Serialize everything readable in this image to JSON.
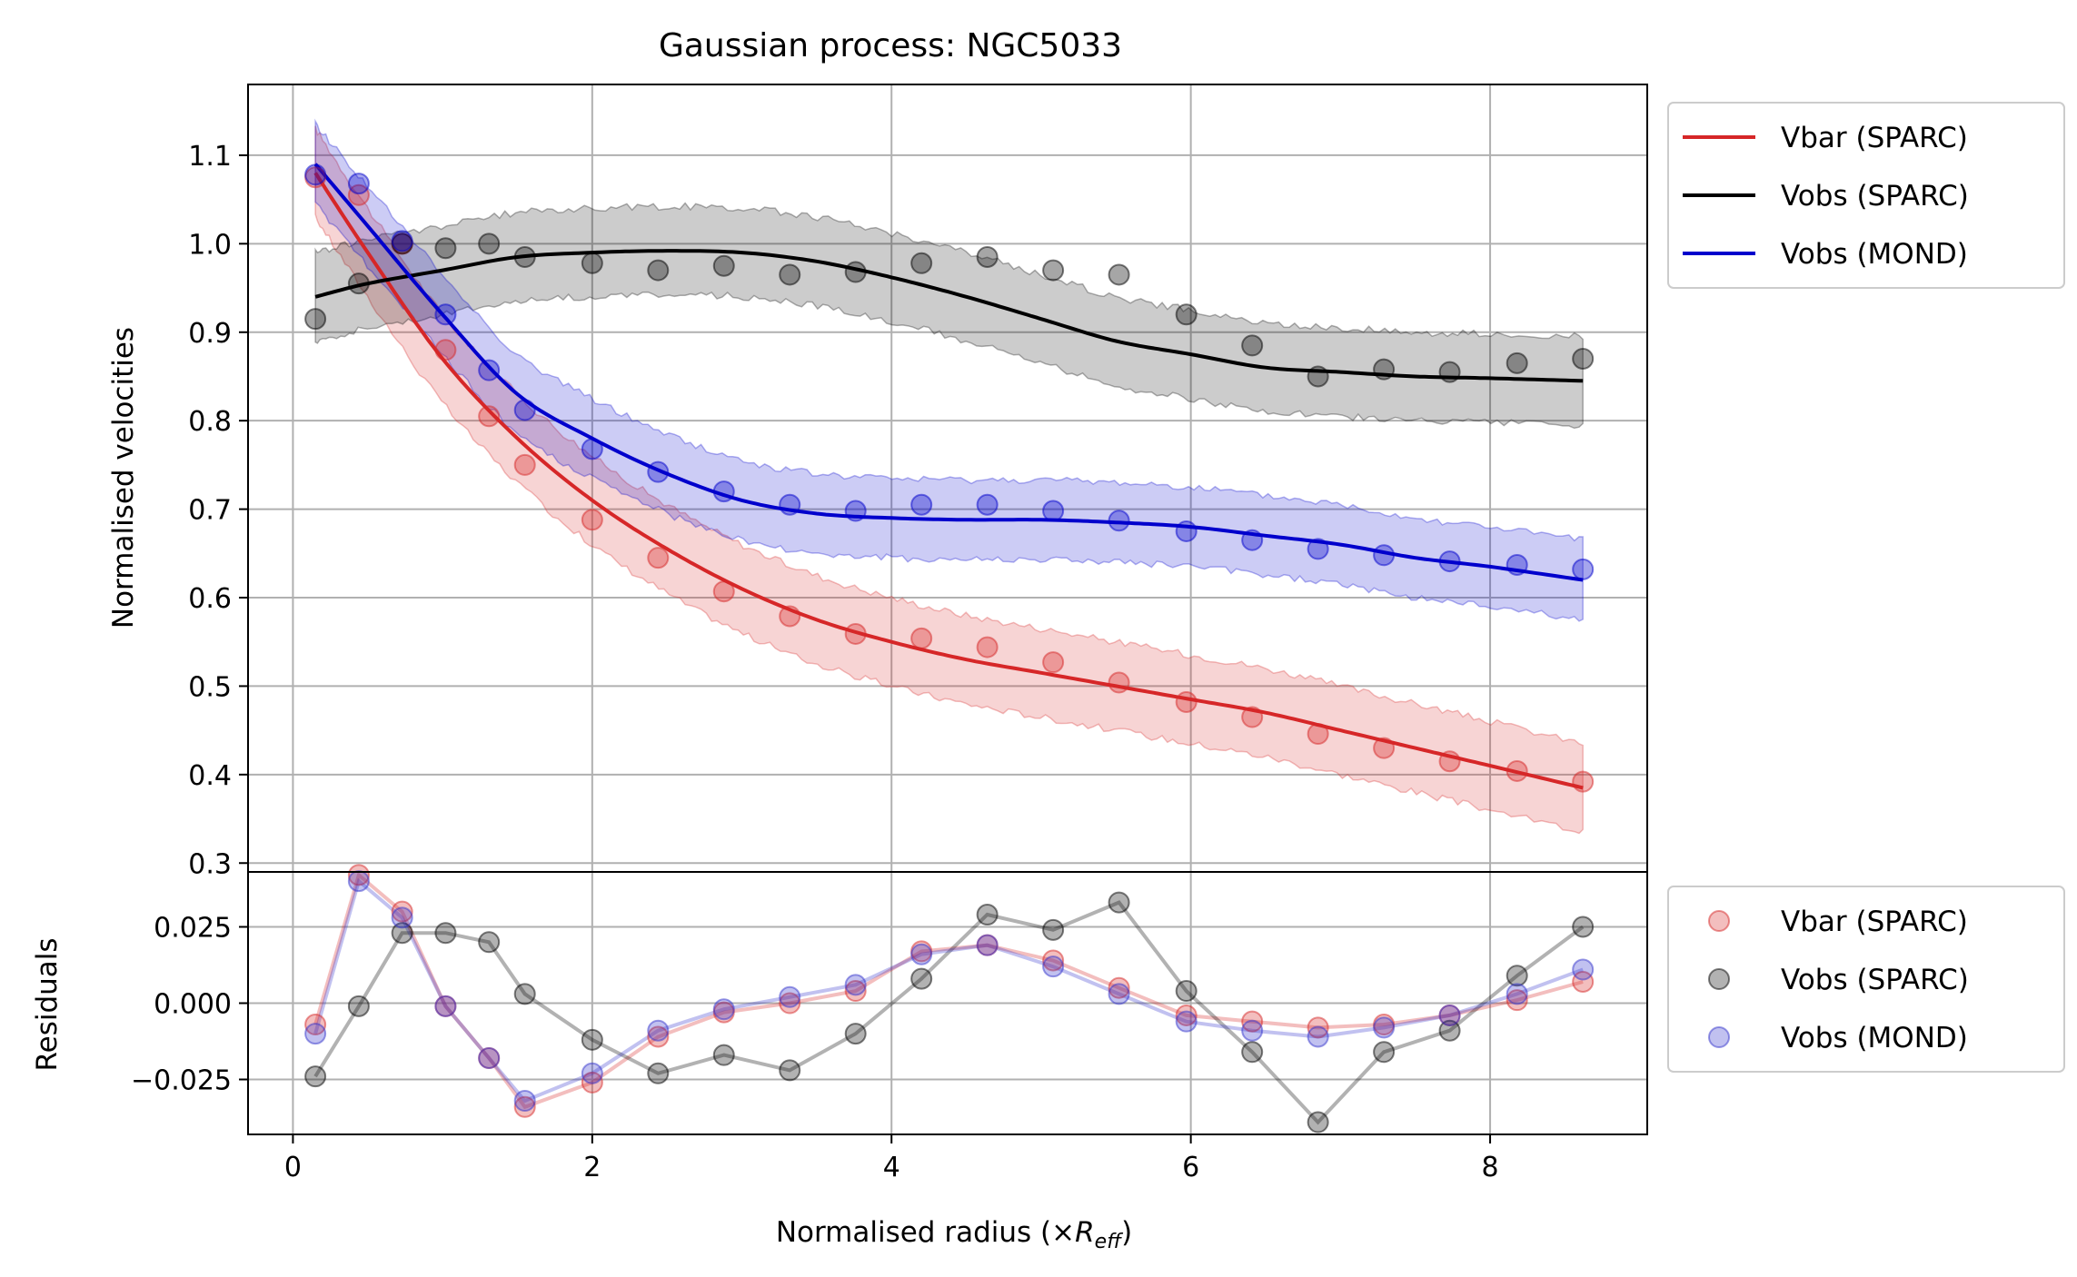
{
  "chart_data": [
    {
      "type": "line",
      "panel": "main",
      "title": "Gaussian process: NGC5033",
      "ylabel": "Normalised velocities",
      "xlim": [
        -0.3,
        9.05
      ],
      "ylim": [
        0.29,
        1.18
      ],
      "grid": true,
      "legend": "outside-right-top",
      "x_ticks": [
        0,
        2,
        4,
        6,
        8
      ],
      "x_tick_labels": [
        "0",
        "2",
        "4",
        "6",
        "8"
      ],
      "y_ticks": [
        0.3,
        0.4,
        0.5,
        0.6,
        0.7,
        0.8,
        0.9,
        1.0,
        1.1
      ],
      "y_tick_labels": [
        "0.3",
        "0.4",
        "0.5",
        "0.6",
        "0.7",
        "0.8",
        "0.9",
        "1.0",
        "1.1"
      ],
      "points_x": [
        0.15,
        0.44,
        0.73,
        1.02,
        1.31,
        1.55,
        2.0,
        2.44,
        2.88,
        3.32,
        3.76,
        4.2,
        4.64,
        5.08,
        5.52,
        5.97,
        6.41,
        6.85,
        7.29,
        7.73,
        8.18,
        8.62
      ],
      "series": [
        {
          "name": "Vbar (SPARC)",
          "color": "#d62728",
          "band_halfwidth": 0.05,
          "curve_x": [
            0.15,
            0.5,
            1.0,
            1.5,
            2.0,
            2.5,
            3.0,
            3.5,
            4.0,
            4.5,
            5.0,
            5.5,
            6.0,
            6.5,
            7.0,
            7.5,
            8.0,
            8.62
          ],
          "curve_y": [
            1.08,
            0.99,
            0.87,
            0.78,
            0.71,
            0.655,
            0.61,
            0.575,
            0.55,
            0.53,
            0.515,
            0.5,
            0.485,
            0.47,
            0.45,
            0.43,
            0.41,
            0.385
          ],
          "points_y": [
            1.075,
            1.055,
            1.0,
            0.88,
            0.805,
            0.75,
            0.688,
            0.645,
            0.607,
            0.579,
            0.559,
            0.554,
            0.544,
            0.527,
            0.504,
            0.482,
            0.465,
            0.446,
            0.43,
            0.415,
            0.404,
            0.392
          ]
        },
        {
          "name": "Vobs (SPARC)",
          "color": "#000000",
          "band_halfwidth": 0.05,
          "curve_x": [
            0.15,
            0.5,
            1.0,
            1.5,
            2.0,
            2.5,
            3.0,
            3.5,
            4.0,
            4.5,
            5.0,
            5.5,
            6.0,
            6.5,
            7.0,
            7.5,
            8.0,
            8.62
          ],
          "curve_y": [
            0.94,
            0.955,
            0.97,
            0.985,
            0.99,
            0.992,
            0.99,
            0.98,
            0.962,
            0.94,
            0.915,
            0.89,
            0.875,
            0.86,
            0.855,
            0.85,
            0.848,
            0.845
          ],
          "points_y": [
            0.915,
            0.955,
            1.0,
            0.995,
            1.0,
            0.985,
            0.978,
            0.97,
            0.975,
            0.965,
            0.968,
            0.978,
            0.985,
            0.97,
            0.965,
            0.92,
            0.885,
            0.85,
            0.858,
            0.855,
            0.865,
            0.87
          ]
        },
        {
          "name": "Vobs (MOND)",
          "color": "#0000cc",
          "band_halfwidth": 0.045,
          "curve_x": [
            0.15,
            0.5,
            1.0,
            1.5,
            2.0,
            2.5,
            3.0,
            3.5,
            4.0,
            4.5,
            5.0,
            5.5,
            6.0,
            6.5,
            7.0,
            7.5,
            8.0,
            8.62
          ],
          "curve_y": [
            1.09,
            1.02,
            0.92,
            0.83,
            0.78,
            0.74,
            0.71,
            0.695,
            0.69,
            0.688,
            0.688,
            0.685,
            0.68,
            0.67,
            0.66,
            0.645,
            0.635,
            0.62
          ],
          "points_y": [
            1.078,
            1.068,
            1.003,
            0.92,
            0.857,
            0.812,
            0.768,
            0.742,
            0.72,
            0.705,
            0.698,
            0.705,
            0.705,
            0.698,
            0.687,
            0.675,
            0.665,
            0.655,
            0.648,
            0.641,
            0.637,
            0.632
          ]
        }
      ]
    },
    {
      "type": "scatter",
      "panel": "residuals",
      "ylabel": "Residuals",
      "xlabel_prefix": "Normalised radius (×",
      "xlabel_symbol": "R",
      "xlabel_subscript": "eff",
      "xlabel_suffix": ")",
      "xlim": [
        -0.3,
        9.05
      ],
      "ylim": [
        -0.043,
        0.043
      ],
      "grid": true,
      "legend": "outside-right-top",
      "x_ticks": [
        0,
        2,
        4,
        6,
        8
      ],
      "x_tick_labels": [
        "0",
        "2",
        "4",
        "6",
        "8"
      ],
      "y_ticks": [
        -0.025,
        0.0,
        0.025
      ],
      "y_tick_labels": [
        "−0.025",
        "0.000",
        "0.025"
      ],
      "points_x": [
        0.15,
        0.44,
        0.73,
        1.02,
        1.31,
        1.55,
        2.0,
        2.44,
        2.88,
        3.32,
        3.76,
        4.2,
        4.64,
        5.08,
        5.52,
        5.97,
        6.41,
        6.85,
        7.29,
        7.73,
        8.18,
        8.62
      ],
      "series": [
        {
          "name": "Vbar (SPARC)",
          "color": "#d62728",
          "values": [
            -0.007,
            0.042,
            0.03,
            -0.001,
            -0.018,
            -0.034,
            -0.026,
            -0.011,
            -0.003,
            0.0,
            0.004,
            0.017,
            0.019,
            0.014,
            0.005,
            -0.004,
            -0.006,
            -0.008,
            -0.007,
            -0.004,
            0.001,
            0.007
          ]
        },
        {
          "name": "Vobs (SPARC)",
          "color": "#000000",
          "values": [
            -0.024,
            -0.001,
            0.023,
            0.023,
            0.02,
            0.003,
            -0.012,
            -0.023,
            -0.017,
            -0.022,
            -0.01,
            0.008,
            0.029,
            0.024,
            0.033,
            0.004,
            -0.016,
            -0.039,
            -0.016,
            -0.009,
            0.009,
            0.025
          ]
        },
        {
          "name": "Vobs (MOND)",
          "color": "#3333cc",
          "values": [
            -0.01,
            0.04,
            0.028,
            -0.001,
            -0.018,
            -0.032,
            -0.023,
            -0.009,
            -0.002,
            0.002,
            0.006,
            0.016,
            0.019,
            0.012,
            0.003,
            -0.006,
            -0.009,
            -0.011,
            -0.008,
            -0.004,
            0.003,
            0.011
          ]
        }
      ]
    }
  ]
}
